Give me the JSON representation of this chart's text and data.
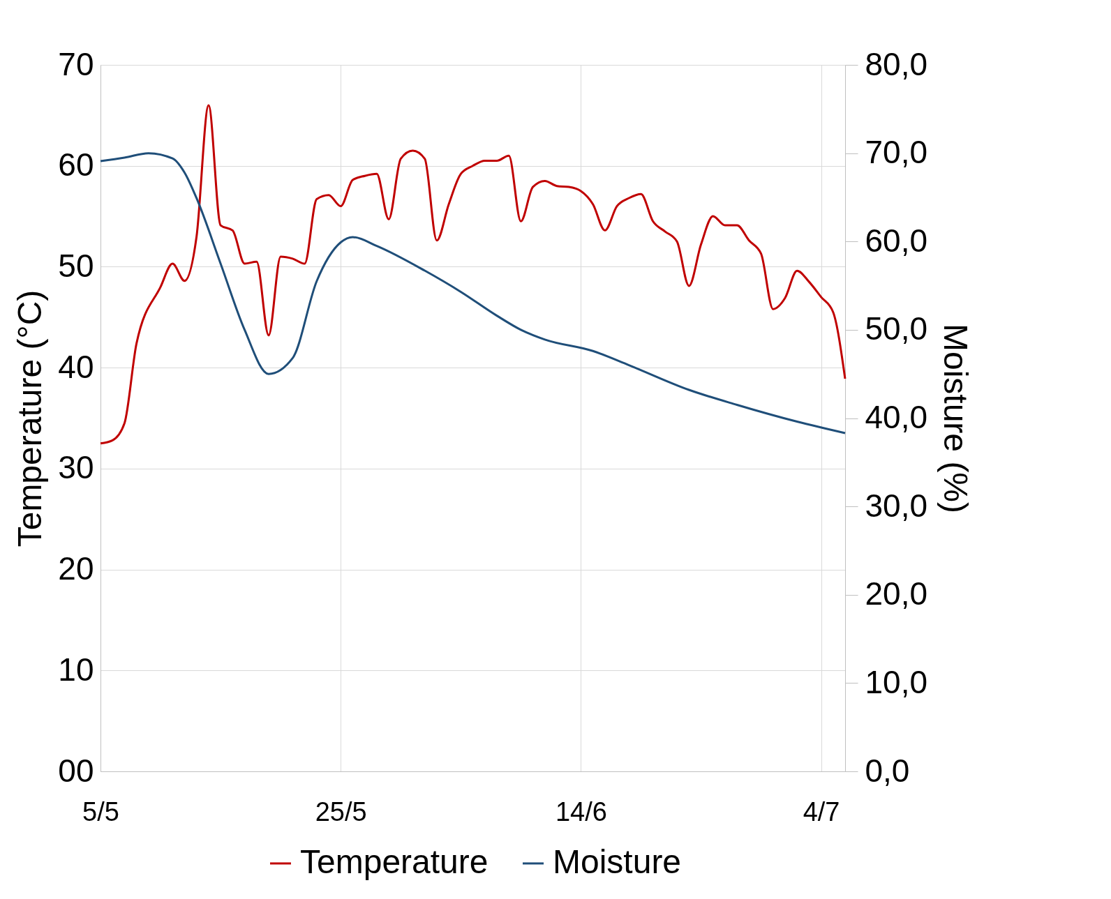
{
  "chart_data": {
    "type": "line",
    "ylabel": "Temperature (°C)",
    "y2label": "Moisture (%)",
    "xlim": [
      "--05-05",
      "--07-06"
    ],
    "xticks": [
      {
        "value": "--05-05",
        "label": "5/5"
      },
      {
        "value": "--05-25",
        "label": "25/5"
      },
      {
        "value": "--06-14",
        "label": "14/6"
      },
      {
        "value": "--07-04",
        "label": "4/7"
      }
    ],
    "ylim": [
      0,
      70
    ],
    "yticks": [
      {
        "value": 0,
        "label": "00"
      },
      10,
      20,
      30,
      40,
      50,
      60,
      70
    ],
    "y2lim": [
      0,
      80
    ],
    "y2ticks": [
      {
        "value": 0,
        "label": "0,0"
      },
      {
        "value": 10,
        "label": "10,0"
      },
      {
        "value": 20,
        "label": "20,0"
      },
      {
        "value": 30,
        "label": "30,0"
      },
      {
        "value": 40,
        "label": "40,0"
      },
      {
        "value": 50,
        "label": "50,0"
      },
      {
        "value": 60,
        "label": "60,0"
      },
      {
        "value": 70,
        "label": "70,0"
      },
      {
        "value": 80,
        "label": "80,0"
      }
    ],
    "grid": true,
    "legend": "bottom",
    "series": [
      {
        "name": "Temperature",
        "color": "#c00000",
        "x": [
          "--05-05",
          "--05-06",
          "--05-07",
          "--05-08",
          "--05-10",
          "--05-11",
          "--05-12",
          "--05-13",
          "--05-14",
          "--05-15",
          "--05-16",
          "--05-17",
          "--05-18",
          "--05-19",
          "--05-20",
          "--05-21",
          "--05-22",
          "--05-23",
          "--05-24",
          "--05-25",
          "--05-26",
          "--05-27",
          "--05-28",
          "--05-29",
          "--05-30",
          "--05-31",
          "--06-01",
          "--06-02",
          "--06-03",
          "--06-04",
          "--06-05",
          "--06-06",
          "--06-07",
          "--06-08",
          "--06-09",
          "--06-10",
          "--06-11",
          "--06-12",
          "--06-13",
          "--06-14",
          "--06-15",
          "--06-16",
          "--06-17",
          "--06-18",
          "--06-19",
          "--06-20",
          "--06-21",
          "--06-22",
          "--06-23",
          "--06-24",
          "--06-25",
          "--06-26",
          "--06-27",
          "--06-28",
          "--06-29",
          "--06-30",
          "--07-01",
          "--07-02",
          "--07-03",
          "--07-04",
          "--07-05",
          "--07-06"
        ],
        "values": [
          32.5,
          32.8,
          34.5,
          42.4,
          48.0,
          50.3,
          48.6,
          53.0,
          66.0,
          54.1,
          53.6,
          50.3,
          50.5,
          43.2,
          51.0,
          50.8,
          50.3,
          56.7,
          57.1,
          56.0,
          58.6,
          59.0,
          59.2,
          54.7,
          60.7,
          61.5,
          60.7,
          52.6,
          56.2,
          59.2,
          60.0,
          60.5,
          60.5,
          61.0,
          54.5,
          57.9,
          58.5,
          58.0,
          57.9,
          57.5,
          56.2,
          53.6,
          56.0,
          56.8,
          57.2,
          54.5,
          53.5,
          52.5,
          48.1,
          52.2,
          55.0,
          54.1,
          54.1,
          52.6,
          51.3,
          45.8,
          46.9,
          49.6,
          48.5,
          47.0,
          45.5,
          38.9
        ]
      },
      {
        "name": "Moisture",
        "color": "#1f4e79",
        "axis": "y2",
        "x": [
          "--05-05",
          "--05-07",
          "--05-09",
          "--05-11",
          "--05-12",
          "--05-13",
          "--05-15",
          "--05-17",
          "--05-19",
          "--05-21",
          "--05-23",
          "--05-25",
          "--05-26",
          "--05-28",
          "--06-01",
          "--06-04",
          "--06-07",
          "--06-09",
          "--06-11",
          "--06-15",
          "--06-18",
          "--06-23",
          "--06-27",
          "--07-02",
          "--07-06"
        ],
        "values": [
          69.1,
          69.5,
          70.0,
          69.4,
          67.8,
          64.9,
          57.5,
          50.0,
          45.0,
          46.8,
          55.5,
          59.9,
          60.5,
          59.5,
          56.7,
          54.3,
          51.6,
          50.0,
          48.9,
          47.6,
          46.0,
          43.2,
          41.5,
          39.6,
          38.3
        ]
      }
    ]
  }
}
